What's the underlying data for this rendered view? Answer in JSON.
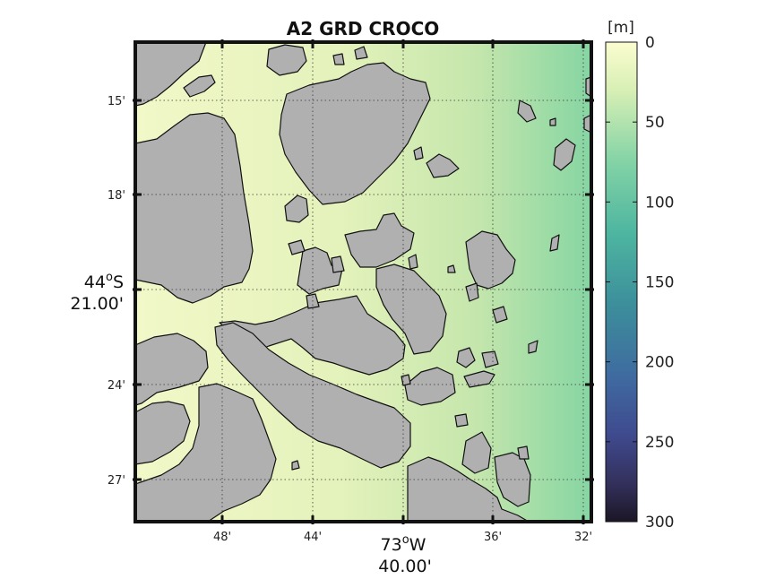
{
  "title": "A2 GRD CROCO",
  "colorbar": {
    "unit": "[m]",
    "ticks": [
      0,
      50,
      100,
      150,
      200,
      250,
      300
    ],
    "range": [
      0,
      300
    ]
  },
  "axes": {
    "x_ticks": [
      "48'",
      "44'",
      "36'",
      "32'"
    ],
    "x_center_line1": "73",
    "x_center_deg": "o",
    "x_center_hemi": "W",
    "x_center_line2": "40.00'",
    "y_ticks": [
      "15'",
      "18'",
      "24'",
      "27'"
    ],
    "y_center_line1": "44",
    "y_center_deg": "o",
    "y_center_hemi": "S",
    "y_center_line2": "21.00'"
  },
  "colors": {
    "land": "#b0b0b0",
    "shallow": "#f4f8cf",
    "mid": "#cbe6ad",
    "deep": "#7fd2a1"
  }
}
